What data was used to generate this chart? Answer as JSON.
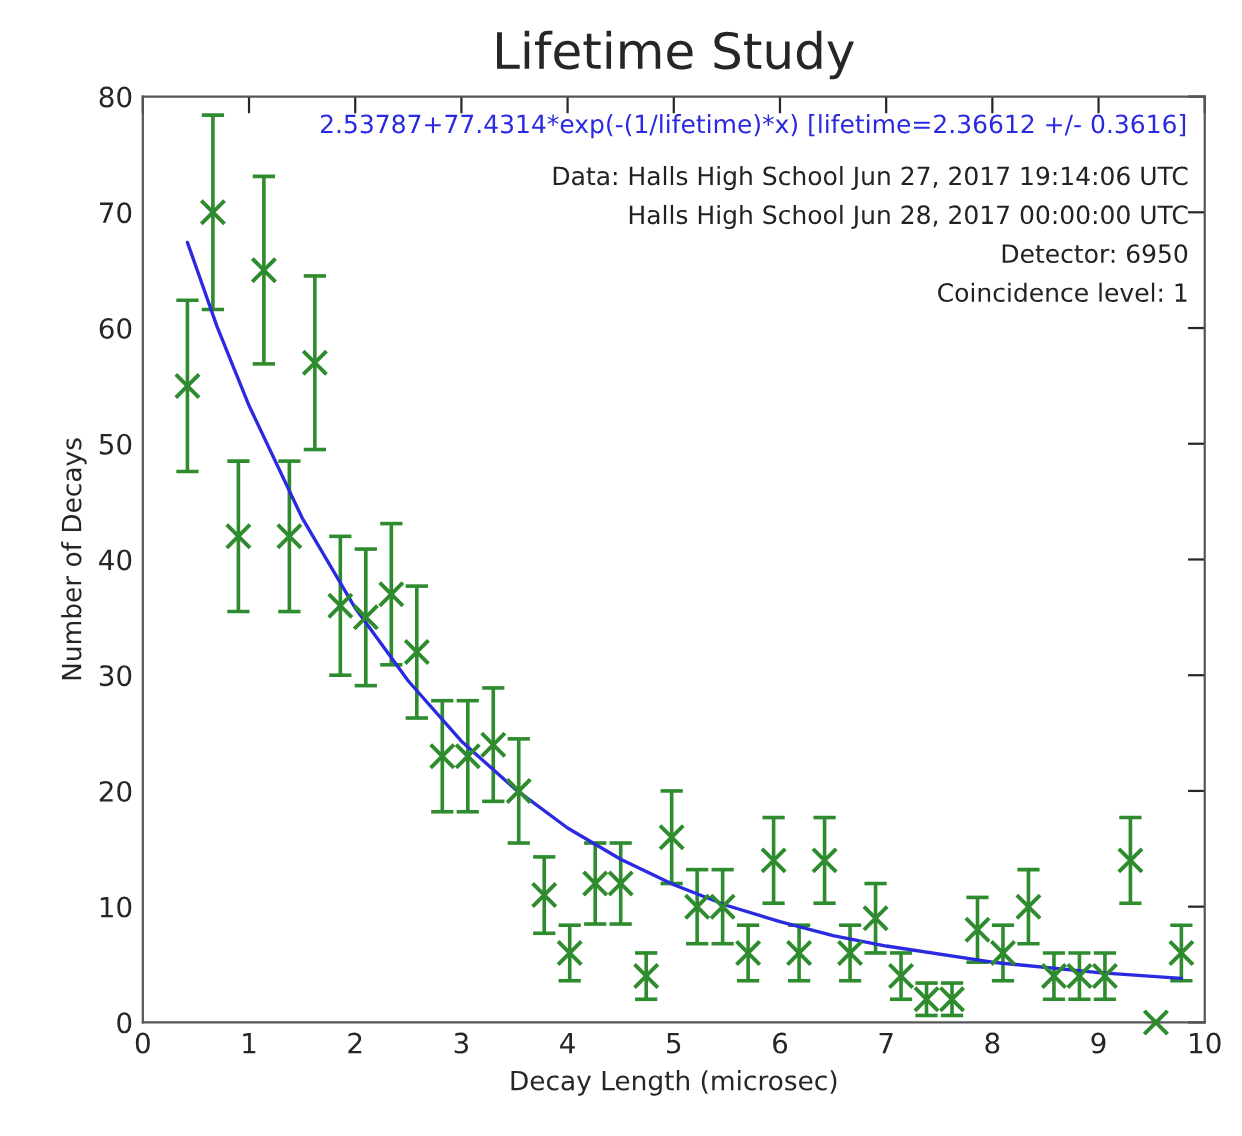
{
  "chart_data": {
    "type": "scatter",
    "title": "Lifetime Study",
    "xlabel": "Decay Length (microsec)",
    "ylabel": "Number of Decays",
    "xlim": [
      0,
      10
    ],
    "ylim": [
      0,
      80
    ],
    "xticks": [
      0,
      1,
      2,
      3,
      4,
      5,
      6,
      7,
      8,
      9,
      10
    ],
    "yticks": [
      0,
      10,
      20,
      30,
      40,
      50,
      60,
      70,
      80
    ],
    "grid": false,
    "legend": "top right",
    "marker": "cross",
    "series": [
      {
        "color": "#2e8b2e",
        "x": [
          0.42,
          0.66,
          0.9,
          1.14,
          1.38,
          1.62,
          1.86,
          2.1,
          2.34,
          2.58,
          2.82,
          3.06,
          3.3,
          3.54,
          3.78,
          4.02,
          4.26,
          4.5,
          4.74,
          4.98,
          5.22,
          5.46,
          5.7,
          5.94,
          6.18,
          6.42,
          6.66,
          6.9,
          7.14,
          7.38,
          7.62,
          7.86,
          8.1,
          8.34,
          8.58,
          8.82,
          9.06,
          9.3,
          9.54,
          9.78
        ],
        "values": [
          55,
          70,
          42,
          65,
          42,
          57,
          36,
          35,
          37,
          32,
          23,
          23,
          24,
          20,
          11,
          6,
          12,
          12,
          4,
          16,
          10,
          10,
          6,
          14,
          6,
          14,
          6,
          9,
          4,
          2,
          2,
          8,
          6,
          10,
          4,
          4,
          4,
          14,
          0,
          6
        ],
        "errors": [
          7.4,
          8.4,
          6.5,
          8.1,
          6.5,
          7.5,
          6,
          5.9,
          6.1,
          5.7,
          4.8,
          4.8,
          4.9,
          4.5,
          3.3,
          2.4,
          3.5,
          3.5,
          2,
          4,
          3.2,
          3.2,
          2.4,
          3.7,
          2.4,
          3.7,
          2.4,
          3,
          2,
          1.4,
          1.4,
          2.8,
          2.4,
          3.2,
          2,
          2,
          2,
          3.7,
          null,
          2.4
        ]
      },
      {
        "type": "line",
        "name": "2.53787+77.4314*exp(-(1/lifetime)*x) [lifetime=2.36612 +/- 0.3616]",
        "color": "#2a2ae0",
        "marker": "none",
        "x": [
          0.42,
          0.7,
          1,
          1.5,
          2,
          2.5,
          3,
          3.5,
          4,
          4.5,
          5,
          5.5,
          6,
          6.5,
          7,
          8,
          9,
          9.78
        ],
        "values": [
          67.4,
          60.1,
          53.3,
          43.6,
          35.8,
          29.5,
          24.3,
          20.2,
          16.8,
          14.1,
          11.9,
          10.1,
          8.7,
          7.5,
          6.6,
          5.2,
          4.3,
          3.8
        ]
      }
    ],
    "annotations": [
      "Data: Halls High School Jun 27, 2017 19:14:06 UTC",
      "Halls High School Jun 28, 2017 00:00:00 UTC",
      "Detector: 6950",
      "Coincidence level: 1"
    ]
  }
}
